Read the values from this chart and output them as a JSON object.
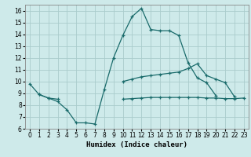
{
  "title": "",
  "xlabel": "Humidex (Indice chaleur)",
  "ylabel": "",
  "xlim": [
    -0.5,
    23.5
  ],
  "ylim": [
    6,
    16.5
  ],
  "xticks": [
    0,
    1,
    2,
    3,
    4,
    5,
    6,
    7,
    8,
    9,
    10,
    11,
    12,
    13,
    14,
    15,
    16,
    17,
    18,
    19,
    20,
    21,
    22,
    23
  ],
  "yticks": [
    6,
    7,
    8,
    9,
    10,
    11,
    12,
    13,
    14,
    15,
    16
  ],
  "bg_color": "#ceeaea",
  "grid_color": "#aacccc",
  "line_color": "#1a6b6b",
  "line1_y": [
    9.8,
    8.9,
    8.6,
    8.3,
    7.6,
    6.5,
    6.5,
    6.4,
    9.3,
    12.0,
    13.9,
    15.5,
    16.2,
    14.4,
    14.3,
    14.3,
    13.9,
    11.6,
    10.3,
    9.9,
    8.8,
    null,
    null,
    null
  ],
  "line2_y": [
    null,
    null,
    null,
    null,
    null,
    null,
    null,
    null,
    null,
    null,
    10.0,
    10.2,
    10.4,
    10.5,
    10.6,
    10.7,
    10.8,
    11.1,
    11.5,
    10.5,
    10.2,
    9.9,
    8.7,
    null
  ],
  "line3_y": [
    null,
    null,
    null,
    null,
    null,
    null,
    null,
    null,
    null,
    null,
    8.5,
    8.55,
    8.6,
    8.65,
    8.65,
    8.65,
    8.65,
    8.65,
    8.65,
    8.6,
    8.6,
    8.55,
    8.55,
    8.6
  ],
  "line4_y": [
    null,
    8.9,
    8.6,
    8.5,
    null,
    null,
    null,
    null,
    null,
    null,
    null,
    null,
    null,
    null,
    null,
    null,
    null,
    null,
    null,
    null,
    null,
    null,
    null,
    null
  ]
}
